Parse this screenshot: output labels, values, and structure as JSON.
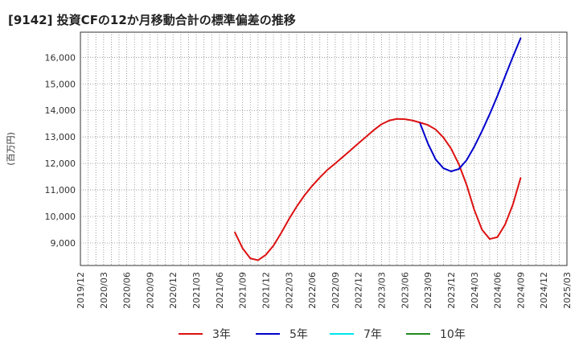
{
  "page": {
    "title": "[9142]  投資CFの12か月移動合計の標準偏差の推移"
  },
  "chart_data": {
    "type": "line",
    "title": "[9142]  投資CFの12か月移動合計の標準偏差の推移",
    "xlabel": "",
    "ylabel": "(百万円)",
    "x_ticks": [
      "2019/12",
      "2020/03",
      "2020/06",
      "2020/09",
      "2020/12",
      "2021/03",
      "2021/06",
      "2021/09",
      "2021/12",
      "2022/03",
      "2022/06",
      "2022/09",
      "2022/12",
      "2023/03",
      "2023/06",
      "2023/09",
      "2023/12",
      "2024/03",
      "2024/06",
      "2024/09",
      "2024/12",
      "2025/03"
    ],
    "y_ticks": [
      9000,
      10000,
      11000,
      12000,
      13000,
      14000,
      15000,
      16000
    ],
    "y_tick_labels": [
      "9,000",
      "10,000",
      "11,000",
      "12,000",
      "13,000",
      "14,000",
      "15,000",
      "16,000"
    ],
    "ylim": [
      8150,
      16950
    ],
    "grid": true,
    "legend_position": "bottom",
    "series": [
      {
        "name": "3年",
        "color": "#dd1111",
        "points": [
          [
            "2021/08",
            9400
          ],
          [
            "2021/09",
            8800
          ],
          [
            "2021/10",
            8420
          ],
          [
            "2021/11",
            8350
          ],
          [
            "2021/12",
            8550
          ],
          [
            "2022/01",
            8900
          ],
          [
            "2022/02",
            9380
          ],
          [
            "2022/03",
            9900
          ],
          [
            "2022/04",
            10370
          ],
          [
            "2022/05",
            10790
          ],
          [
            "2022/06",
            11150
          ],
          [
            "2022/07",
            11470
          ],
          [
            "2022/08",
            11760
          ],
          [
            "2022/09",
            12000
          ],
          [
            "2022/10",
            12250
          ],
          [
            "2022/11",
            12500
          ],
          [
            "2022/12",
            12760
          ],
          [
            "2023/01",
            13010
          ],
          [
            "2023/02",
            13260
          ],
          [
            "2023/03",
            13480
          ],
          [
            "2023/04",
            13620
          ],
          [
            "2023/05",
            13680
          ],
          [
            "2023/06",
            13670
          ],
          [
            "2023/07",
            13620
          ],
          [
            "2023/08",
            13540
          ],
          [
            "2023/09",
            13450
          ],
          [
            "2023/10",
            13280
          ],
          [
            "2023/11",
            12980
          ],
          [
            "2023/12",
            12560
          ],
          [
            "2024/01",
            11970
          ],
          [
            "2024/02",
            11200
          ],
          [
            "2024/03",
            10250
          ],
          [
            "2024/04",
            9500
          ],
          [
            "2024/05",
            9150
          ],
          [
            "2024/06",
            9220
          ],
          [
            "2024/07",
            9700
          ],
          [
            "2024/08",
            10450
          ],
          [
            "2024/09",
            11450
          ]
        ]
      },
      {
        "name": "5年",
        "color": "#0000cc",
        "points": [
          [
            "2023/08",
            13500
          ],
          [
            "2023/09",
            12750
          ],
          [
            "2023/10",
            12150
          ],
          [
            "2023/11",
            11820
          ],
          [
            "2023/12",
            11700
          ],
          [
            "2024/01",
            11790
          ],
          [
            "2024/02",
            12120
          ],
          [
            "2024/03",
            12630
          ],
          [
            "2024/04",
            13220
          ],
          [
            "2024/05",
            13860
          ],
          [
            "2024/06",
            14550
          ],
          [
            "2024/07",
            15290
          ],
          [
            "2024/08",
            16020
          ],
          [
            "2024/09",
            16720
          ]
        ]
      },
      {
        "name": "7年",
        "color": "#00e5ee",
        "points": []
      },
      {
        "name": "10年",
        "color": "#228b22",
        "points": []
      }
    ]
  }
}
